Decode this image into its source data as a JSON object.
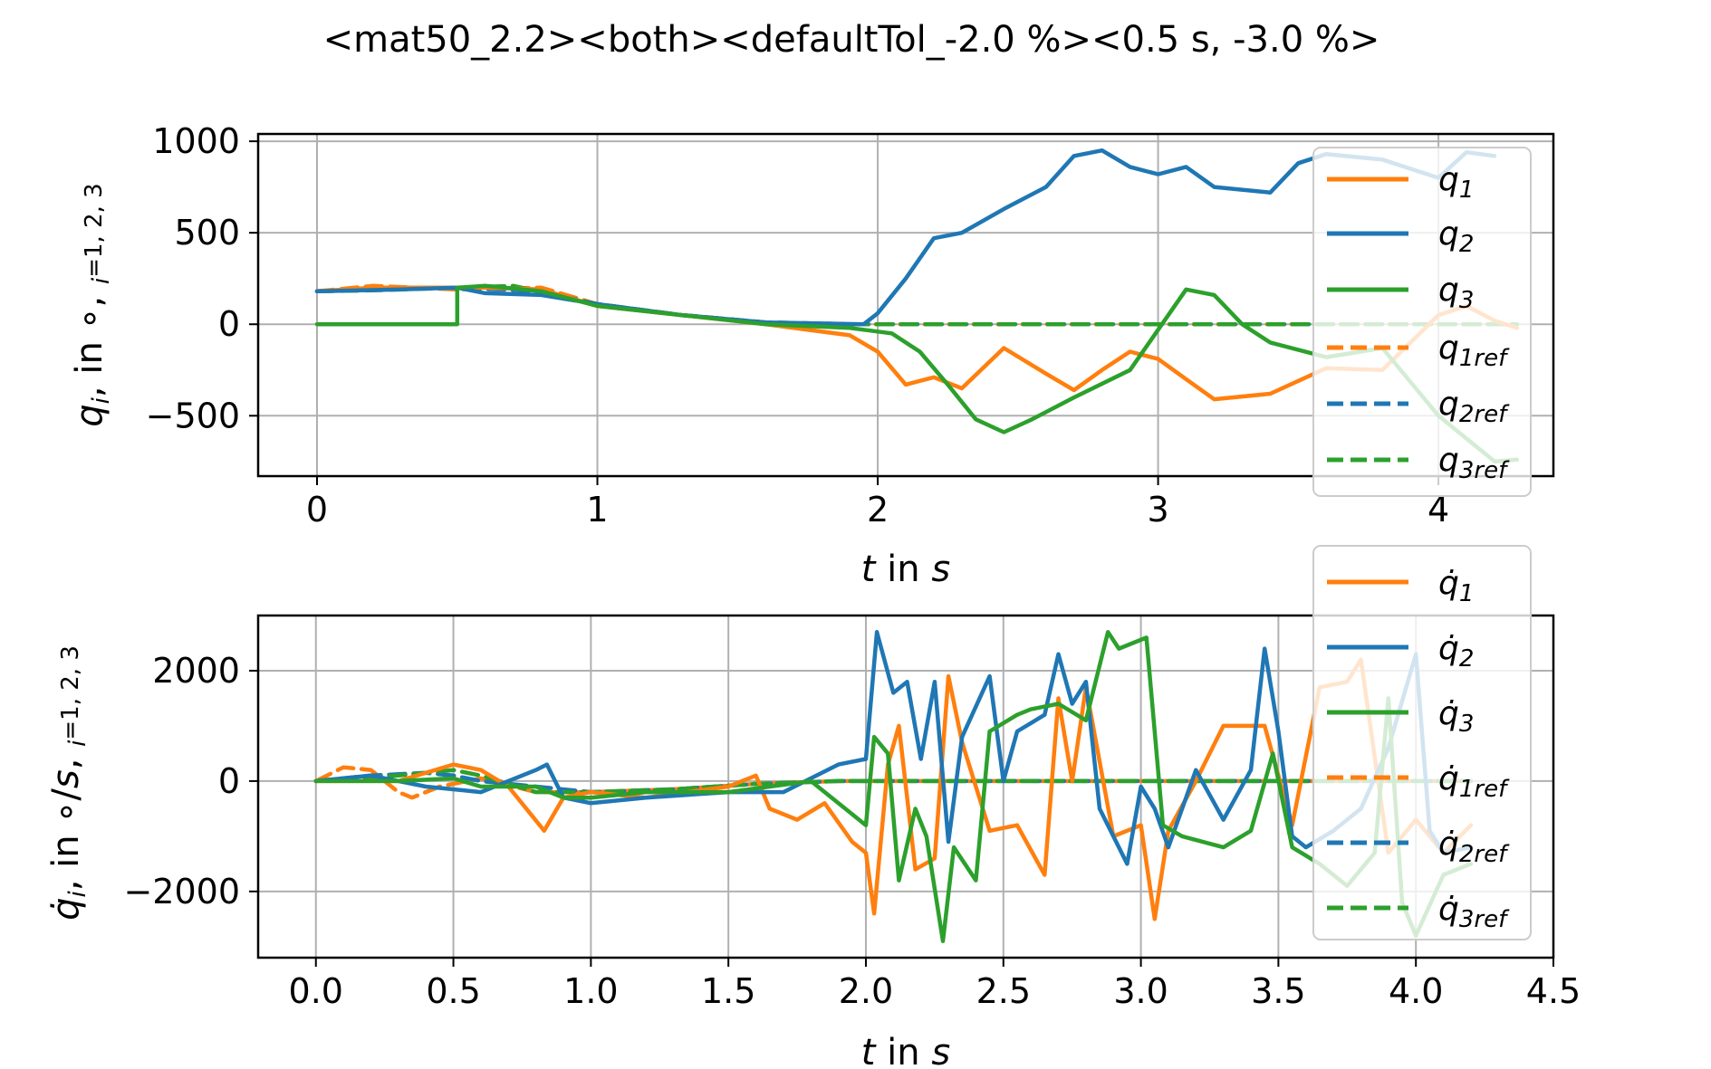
{
  "figure_title": "<mat50_2.2><both><defaultTol_-2.0 %><0.5 s, -3.0 %>",
  "colors": {
    "q1": "#ff7f0e",
    "q2": "#1f77b4",
    "q3": "#2ca02c",
    "grid": "#b0b0b0"
  },
  "chart_data": [
    {
      "type": "line",
      "xlabel": "t in s",
      "ylabel": "q_i, in °, i=1,2,3",
      "xlim": [
        -0.21,
        4.41
      ],
      "ylim": [
        -830,
        1040
      ],
      "xticks": [
        "0",
        "1",
        "2",
        "3",
        "4"
      ],
      "yticks": [
        "1000",
        "500",
        "0",
        "−500"
      ],
      "grid": true,
      "legend": {
        "placement": "right",
        "entries": [
          "q1",
          "q2",
          "q3",
          "q1ref",
          "q2ref",
          "q3ref"
        ]
      },
      "series": [
        {
          "name": "q1",
          "color": "#ff7f0e",
          "dash": false,
          "x": [
            0,
            0.2,
            0.5,
            0.6,
            0.8,
            1.0,
            1.3,
            1.6,
            1.9,
            2.0,
            2.1,
            2.2,
            2.3,
            2.45,
            2.6,
            2.7,
            2.8,
            2.9,
            3.0,
            3.1,
            3.2,
            3.4,
            3.6,
            3.8,
            4.0,
            4.1,
            4.2,
            4.28
          ],
          "y": [
            180,
            200,
            200,
            200,
            190,
            100,
            50,
            0,
            -60,
            -150,
            -330,
            -290,
            -350,
            -130,
            -270,
            -360,
            -250,
            -150,
            -190,
            -300,
            -410,
            -380,
            -240,
            -250,
            50,
            100,
            20,
            -20
          ]
        },
        {
          "name": "q2",
          "color": "#1f77b4",
          "dash": false,
          "x": [
            0,
            0.3,
            0.5,
            0.6,
            0.8,
            1.0,
            1.3,
            1.6,
            1.95,
            2.0,
            2.1,
            2.2,
            2.3,
            2.45,
            2.6,
            2.7,
            2.8,
            2.9,
            3.0,
            3.1,
            3.2,
            3.4,
            3.5,
            3.6,
            3.8,
            4.0,
            4.1,
            4.2
          ],
          "y": [
            180,
            190,
            200,
            170,
            160,
            110,
            50,
            10,
            0,
            60,
            250,
            470,
            500,
            630,
            750,
            920,
            950,
            860,
            820,
            860,
            750,
            720,
            880,
            930,
            900,
            800,
            940,
            920
          ]
        },
        {
          "name": "q3",
          "color": "#2ca02c",
          "dash": false,
          "x": [
            0,
            0.5,
            0.5,
            0.6,
            0.8,
            1.0,
            1.3,
            1.6,
            1.9,
            2.05,
            2.15,
            2.25,
            2.35,
            2.45,
            2.55,
            2.7,
            2.9,
            3.0,
            3.1,
            3.2,
            3.3,
            3.4,
            3.6,
            3.8,
            4.0,
            4.2,
            4.28
          ],
          "y": [
            0,
            0,
            200,
            210,
            180,
            100,
            50,
            0,
            -20,
            -50,
            -150,
            -330,
            -520,
            -590,
            -520,
            -400,
            -250,
            -30,
            190,
            160,
            0,
            -100,
            -180,
            -130,
            -500,
            -750,
            -740
          ]
        },
        {
          "name": "q1ref",
          "color": "#ff7f0e",
          "dash": true,
          "x": [
            0,
            0.2,
            0.5,
            0.8,
            1.0,
            1.3,
            1.6,
            1.9,
            2.0,
            4.28
          ],
          "y": [
            180,
            210,
            190,
            200,
            110,
            50,
            10,
            0,
            0,
            0
          ]
        },
        {
          "name": "q2ref",
          "color": "#1f77b4",
          "dash": true,
          "x": [
            0,
            0.2,
            0.5,
            0.8,
            1.0,
            1.3,
            1.6,
            1.9,
            2.0,
            4.28
          ],
          "y": [
            180,
            190,
            200,
            180,
            110,
            50,
            10,
            0,
            0,
            0
          ]
        },
        {
          "name": "q3ref",
          "color": "#2ca02c",
          "dash": true,
          "x": [
            0,
            0.2,
            0.5,
            0.7,
            1.0,
            1.3,
            1.6,
            1.9,
            2.0,
            4.28
          ],
          "y": [
            180,
            185,
            200,
            210,
            110,
            50,
            10,
            0,
            0,
            0
          ]
        }
      ]
    },
    {
      "type": "line",
      "xlabel": "t in s",
      "ylabel": "q̇_i, in °/s, i=1,2,3",
      "xlim": [
        -0.21,
        4.5
      ],
      "ylim": [
        -3200,
        3000
      ],
      "xticks": [
        "0.0",
        "0.5",
        "1.0",
        "1.5",
        "2.0",
        "2.5",
        "3.0",
        "3.5",
        "4.0",
        "4.5"
      ],
      "yticks": [
        "2000",
        "0",
        "−2000"
      ],
      "grid": true,
      "legend": {
        "placement": "right",
        "entries": [
          "q̇1",
          "q̇2",
          "q̇3",
          "q̇1ref",
          "q̇2ref",
          "q̇3ref"
        ]
      },
      "series": [
        {
          "name": "q̇1",
          "color": "#ff7f0e",
          "dash": false,
          "x": [
            0,
            0.3,
            0.5,
            0.6,
            0.7,
            0.83,
            0.9,
            1.0,
            1.2,
            1.5,
            1.6,
            1.65,
            1.75,
            1.85,
            1.95,
            2.0,
            2.03,
            2.08,
            2.12,
            2.18,
            2.25,
            2.3,
            2.35,
            2.45,
            2.55,
            2.65,
            2.7,
            2.75,
            2.8,
            2.9,
            3.0,
            3.05,
            3.1,
            3.2,
            3.3,
            3.45,
            3.55,
            3.65,
            3.75,
            3.8,
            3.9,
            4.0,
            4.1,
            4.2
          ],
          "y": [
            0,
            0,
            300,
            200,
            -100,
            -900,
            -300,
            -200,
            -300,
            -100,
            100,
            -500,
            -700,
            -400,
            -1100,
            -1300,
            -2400,
            300,
            1000,
            -1600,
            -1400,
            1900,
            700,
            -900,
            -800,
            -1700,
            1500,
            0,
            1700,
            -1000,
            -800,
            -2500,
            -900,
            0,
            1000,
            1000,
            -800,
            1700,
            1800,
            2200,
            -1300,
            -700,
            -1300,
            -800
          ]
        },
        {
          "name": "q̇2",
          "color": "#1f77b4",
          "dash": false,
          "x": [
            0,
            0.2,
            0.4,
            0.6,
            0.8,
            0.84,
            0.9,
            1.0,
            1.2,
            1.5,
            1.7,
            1.9,
            2.0,
            2.04,
            2.1,
            2.15,
            2.2,
            2.25,
            2.3,
            2.35,
            2.45,
            2.5,
            2.55,
            2.65,
            2.7,
            2.75,
            2.8,
            2.85,
            2.95,
            3.0,
            3.05,
            3.1,
            3.2,
            3.3,
            3.4,
            3.45,
            3.5,
            3.55,
            3.6,
            3.7,
            3.8,
            3.9,
            4.0,
            4.05,
            4.1,
            4.2
          ],
          "y": [
            0,
            100,
            -100,
            -200,
            200,
            300,
            -300,
            -400,
            -300,
            -200,
            -200,
            300,
            400,
            2700,
            1600,
            1800,
            400,
            1800,
            -1100,
            800,
            1900,
            0,
            900,
            1200,
            2300,
            1400,
            1800,
            -500,
            -1500,
            -100,
            -500,
            -1200,
            200,
            -700,
            200,
            2400,
            900,
            -1000,
            -1200,
            -900,
            -500,
            600,
            2300,
            -900,
            -1300,
            -1200
          ]
        },
        {
          "name": "q̇3",
          "color": "#2ca02c",
          "dash": false,
          "x": [
            0,
            0.3,
            0.5,
            0.6,
            0.8,
            0.9,
            1.0,
            1.2,
            1.5,
            1.8,
            1.95,
            2.0,
            2.03,
            2.08,
            2.12,
            2.18,
            2.22,
            2.28,
            2.32,
            2.4,
            2.45,
            2.55,
            2.6,
            2.7,
            2.8,
            2.88,
            2.92,
            2.97,
            3.02,
            3.08,
            3.15,
            3.3,
            3.4,
            3.48,
            3.55,
            3.65,
            3.75,
            3.85,
            3.9,
            3.95,
            4.0,
            4.1,
            4.2
          ],
          "y": [
            0,
            0,
            50,
            -100,
            -100,
            -300,
            -300,
            -200,
            -200,
            0,
            -600,
            -800,
            800,
            500,
            -1800,
            -500,
            -1000,
            -2900,
            -1200,
            -1800,
            900,
            1200,
            1300,
            1400,
            1100,
            2700,
            2400,
            2500,
            2600,
            -800,
            -1000,
            -1200,
            -900,
            500,
            -1200,
            -1500,
            -1900,
            -1300,
            1500,
            -2200,
            -2800,
            -1700,
            -1500
          ]
        },
        {
          "name": "q̇1ref",
          "color": "#ff7f0e",
          "dash": true,
          "x": [
            0,
            0.1,
            0.2,
            0.3,
            0.35,
            0.45,
            0.6,
            0.8,
            1.0,
            1.3,
            1.6,
            1.9,
            2.0,
            4.2
          ],
          "y": [
            0,
            250,
            200,
            -200,
            -300,
            -100,
            50,
            -200,
            -200,
            -150,
            -50,
            0,
            0,
            0
          ]
        },
        {
          "name": "q̇2ref",
          "color": "#1f77b4",
          "dash": true,
          "x": [
            0,
            0.2,
            0.4,
            0.5,
            0.6,
            0.8,
            1.0,
            1.3,
            1.6,
            1.9,
            2.0,
            4.2
          ],
          "y": [
            0,
            100,
            150,
            100,
            0,
            -100,
            -200,
            -150,
            -50,
            0,
            0,
            0
          ]
        },
        {
          "name": "q̇3ref",
          "color": "#2ca02c",
          "dash": true,
          "x": [
            0,
            0.3,
            0.5,
            0.6,
            0.8,
            1.0,
            1.3,
            1.6,
            1.9,
            2.0,
            4.2
          ],
          "y": [
            0,
            100,
            200,
            100,
            -200,
            -200,
            -150,
            -50,
            0,
            0,
            0
          ]
        }
      ]
    }
  ]
}
